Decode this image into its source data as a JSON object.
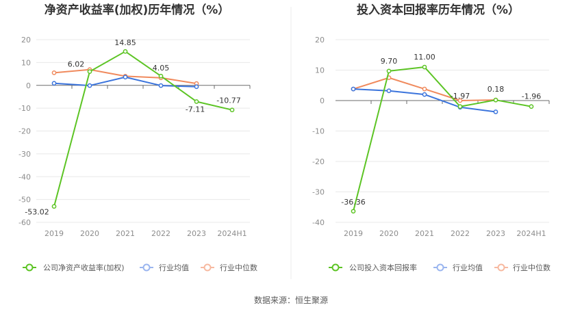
{
  "source_label": "数据来源：恒生聚源",
  "colors": {
    "company": "#5cc424",
    "industry_avg": "#3b74dc",
    "industry_median": "#f08a5d",
    "legend_avg": "#9ab5ef",
    "legend_median": "#f7b9a0",
    "grid": "#e8e8e8",
    "axis": "#6b6b6b"
  },
  "chart_data": [
    {
      "type": "line",
      "title": "净资产收益率(加权)历年情况（%）",
      "categories": [
        "2019",
        "2020",
        "2021",
        "2022",
        "2023",
        "2024H1"
      ],
      "ylim": [
        -60,
        20
      ],
      "yticks": [
        "20",
        "10",
        "0",
        "-10",
        "-20",
        "-30",
        "-40",
        "-50",
        "-60"
      ],
      "grid": true,
      "legend_position": "bottom",
      "series": [
        {
          "name": "公司净资产收益率(加权)",
          "values": [
            -53.02,
            6.02,
            14.85,
            4.05,
            -7.11,
            -10.77
          ],
          "labels": [
            "-53.02",
            "6.02",
            "14.85",
            "4.05",
            "-7.11",
            "-10.77"
          ]
        },
        {
          "name": "行业均值",
          "values": [
            0.9,
            -0.1,
            3.6,
            -0.1,
            -0.6,
            null
          ]
        },
        {
          "name": "行业中位数",
          "values": [
            5.5,
            6.9,
            4.0,
            3.3,
            0.8,
            null
          ]
        }
      ]
    },
    {
      "type": "line",
      "title": "投入资本回报率历年情况（%）",
      "categories": [
        "2019",
        "2020",
        "2021",
        "2022",
        "2023",
        "2024H1"
      ],
      "ylim": [
        -40,
        20
      ],
      "yticks": [
        "20",
        "10",
        "0",
        "-10",
        "-20",
        "-30",
        "-40"
      ],
      "grid": true,
      "legend_position": "bottom",
      "series": [
        {
          "name": "公司投入资本回报率",
          "values": [
            -36.36,
            9.7,
            11.0,
            -1.97,
            0.18,
            -1.96
          ],
          "labels": [
            "-36.36",
            "9.70",
            "11.00",
            "-1.97",
            "0.18",
            "-1.96"
          ]
        },
        {
          "name": "行业均值",
          "values": [
            3.8,
            3.2,
            2.0,
            -2.2,
            -3.7,
            null
          ]
        },
        {
          "name": "行业中位数",
          "values": [
            3.8,
            7.5,
            3.8,
            0.0,
            0.2,
            null
          ]
        }
      ]
    }
  ]
}
